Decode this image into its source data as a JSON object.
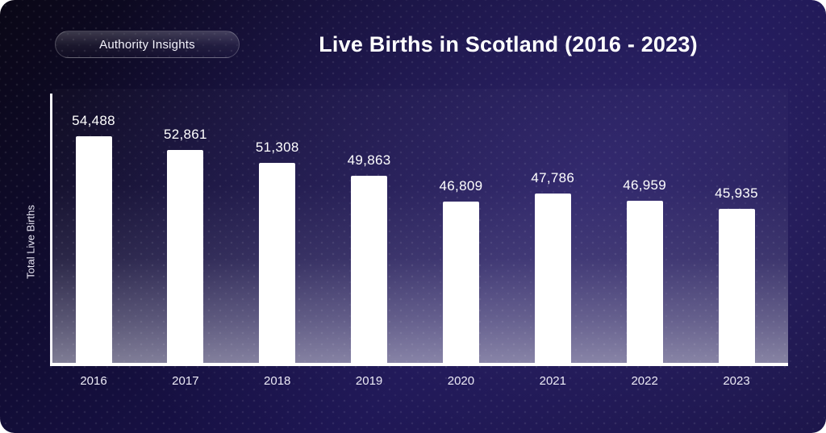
{
  "badge": {
    "label": "Authority Insights"
  },
  "title": "Live Births in Scotland (2016 - 2023)",
  "chart_data": {
    "type": "bar",
    "title": "Live Births in Scotland (2016 - 2023)",
    "categories": [
      "2016",
      "2017",
      "2018",
      "2019",
      "2020",
      "2021",
      "2022",
      "2023"
    ],
    "values": [
      54488,
      52861,
      51308,
      49863,
      46809,
      47786,
      46959,
      45935
    ],
    "value_labels": [
      "54,488",
      "52,861",
      "51,308",
      "49,863",
      "46,809",
      "47,786",
      "46,959",
      "45,935"
    ],
    "xlabel": "",
    "ylabel": "Total Live Births",
    "ylim": [
      28000,
      60000
    ],
    "grid": false,
    "legend": false,
    "bar_color": "#ffffff",
    "background_top_color": "#0a0716",
    "background_bottom_color": "#1b1450",
    "axis_color": "#ffffff",
    "label_color": "#ffffff"
  }
}
